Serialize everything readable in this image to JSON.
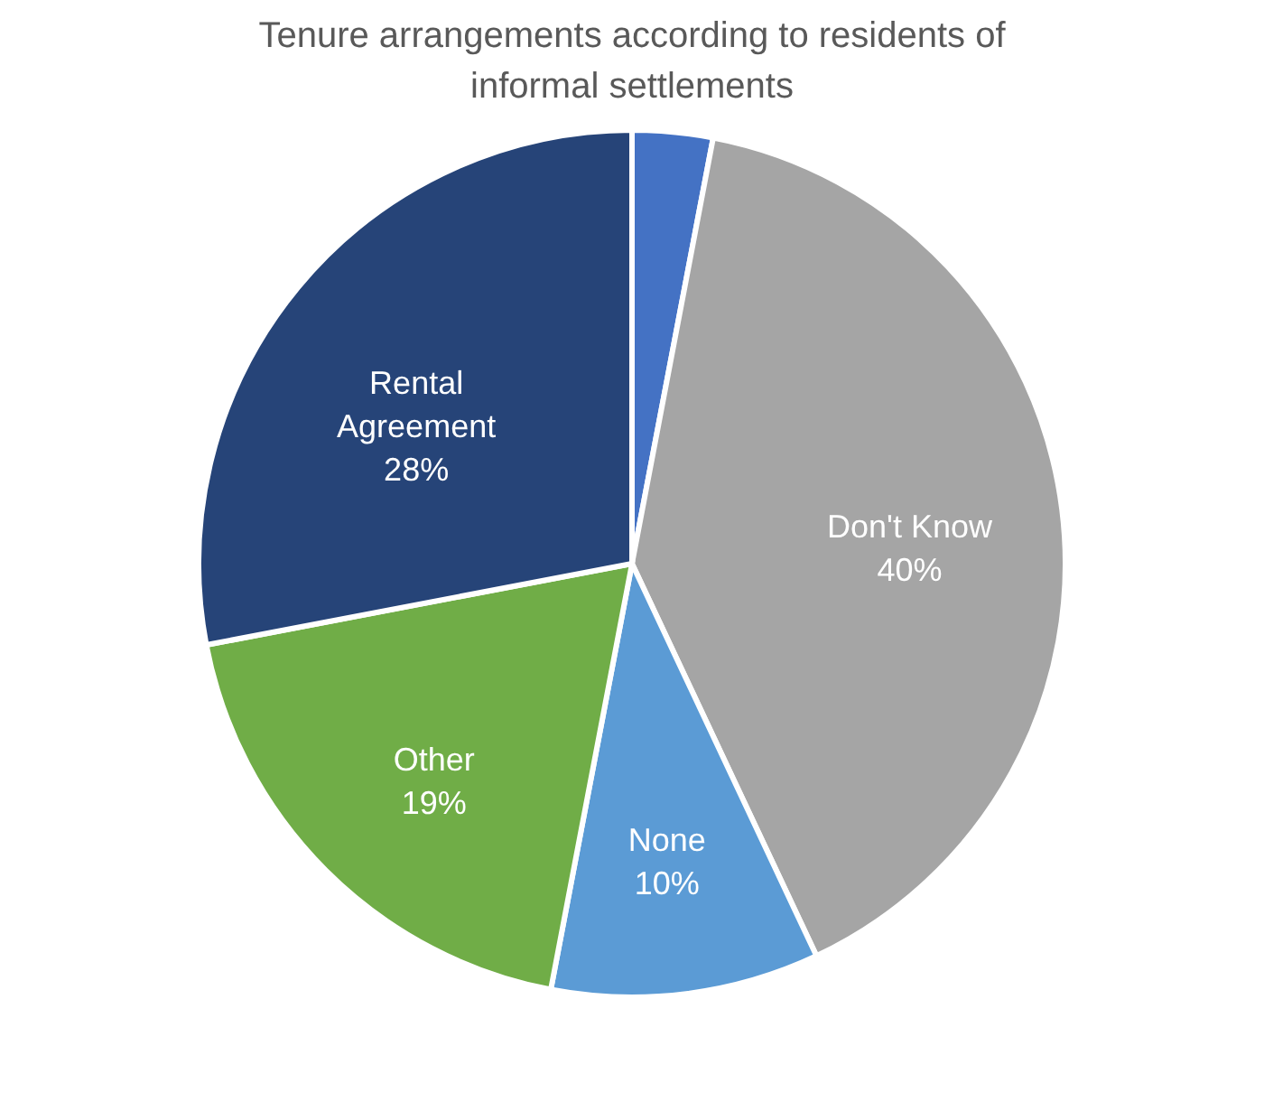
{
  "chart_data": {
    "type": "pie",
    "title": "Tenure arrangements according to residents of informal settlements",
    "categories": [
      null,
      "Don't Know",
      "None",
      "Other",
      "Rental Agreement"
    ],
    "values": [
      3,
      40,
      10,
      19,
      28
    ],
    "colors": [
      "#4472c4",
      "#a5a5a5",
      "#5b9bd5",
      "#70ad47",
      "#264478"
    ],
    "value_labels": [
      null,
      "40%",
      "10%",
      "19%",
      "28%"
    ],
    "legend": false
  }
}
